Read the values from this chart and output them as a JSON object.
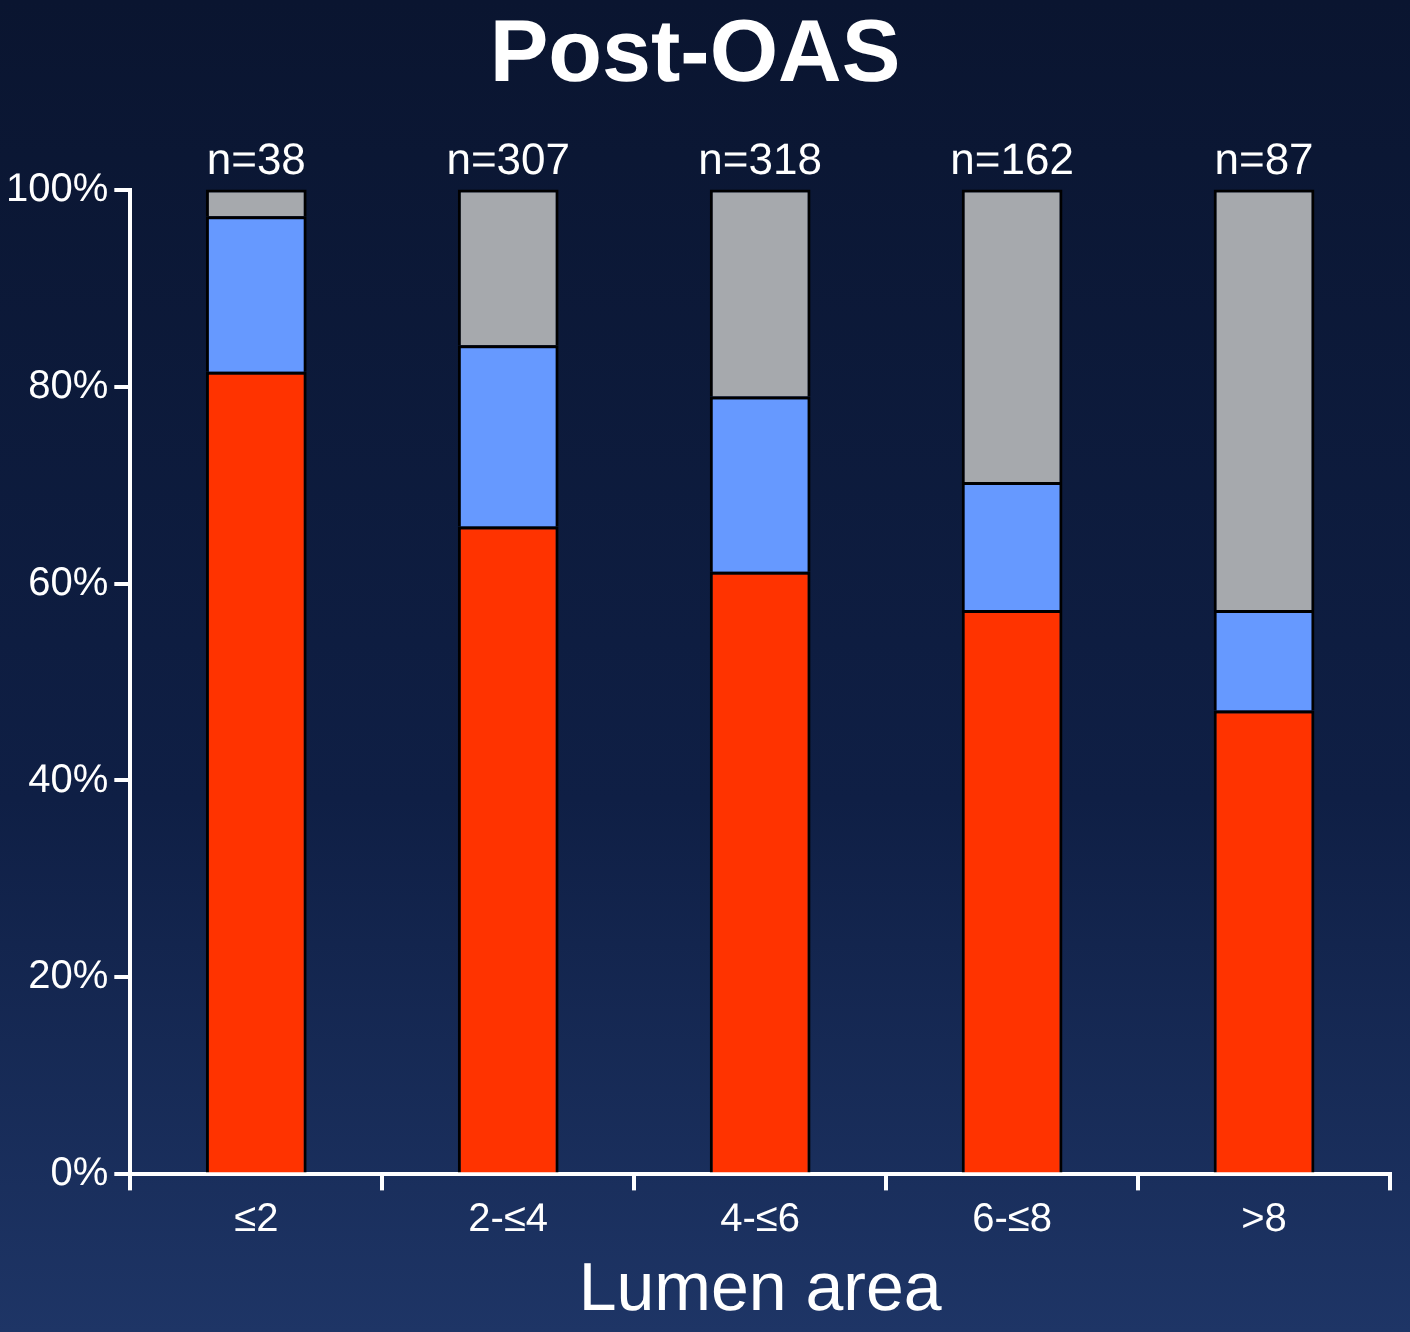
{
  "chart_data": {
    "type": "bar",
    "title": "Post-OAS",
    "xlabel": "Lumen area",
    "stacked": true,
    "categories": [
      "≤2",
      "2-≤4",
      "4-≤6",
      "6-≤8",
      ">8"
    ],
    "series": [
      {
        "color": "#ff3300",
        "values": [
          81.5,
          65.8,
          61.2,
          57.3,
          47.1
        ]
      },
      {
        "color": "#6699ff",
        "values": [
          15.8,
          18.4,
          17.8,
          13.0,
          10.2
        ]
      },
      {
        "color": "#a6a9ad",
        "values": [
          2.7,
          15.8,
          21.0,
          29.7,
          42.7
        ]
      }
    ],
    "ylim": [
      0,
      100
    ],
    "yticks": [
      {
        "value": 0,
        "label": "0%"
      },
      {
        "value": 20,
        "label": "20%"
      },
      {
        "value": 40,
        "label": "40%"
      },
      {
        "value": 60,
        "label": "60%"
      },
      {
        "value": 80,
        "label": "80%"
      },
      {
        "value": 100,
        "label": "100%"
      }
    ],
    "annotations": [
      {
        "text": "n=38",
        "x": "≤2",
        "y": 100
      },
      {
        "text": "n=307",
        "x": "2-≤4",
        "y": 100
      },
      {
        "text": "n=318",
        "x": "4-≤6",
        "y": 100
      },
      {
        "text": "n=162",
        "x": "6-≤8",
        "y": 100
      },
      {
        "text": "n=87",
        "x": ">8",
        "y": 100
      }
    ]
  }
}
